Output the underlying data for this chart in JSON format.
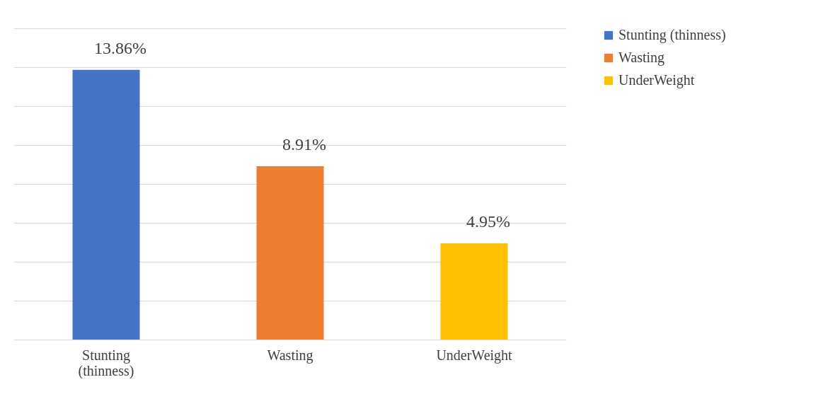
{
  "chart_data": {
    "type": "bar",
    "categories": [
      "Stunting (thinness)",
      "Wasting",
      "UnderWeight"
    ],
    "series": [
      {
        "name": "Stunting (thinness)",
        "color": "#4472c4",
        "values": [
          13.86,
          null,
          null
        ],
        "value_labels": [
          "13.86%",
          null,
          null
        ]
      },
      {
        "name": "Wasting",
        "color": "#ed7d31",
        "values": [
          null,
          8.91,
          null
        ],
        "value_labels": [
          null,
          "8.91%",
          null
        ]
      },
      {
        "name": "UnderWeight",
        "color": "#ffc000",
        "values": [
          null,
          null,
          4.95
        ],
        "value_labels": [
          null,
          null,
          "4.95%"
        ]
      }
    ],
    "ylim": [
      0,
      16
    ],
    "yticks": [
      {
        "value": 0,
        "label": null
      },
      {
        "value": 2,
        "label": null
      },
      {
        "value": 4,
        "label": null
      },
      {
        "value": 6,
        "label": null
      },
      {
        "value": 8,
        "label": null
      },
      {
        "value": 10,
        "label": null
      },
      {
        "value": 12,
        "label": null
      },
      {
        "value": 14,
        "label": null
      },
      {
        "value": 16,
        "label": null
      }
    ],
    "grid": "y",
    "legend": "right",
    "tick_labels": "x"
  }
}
